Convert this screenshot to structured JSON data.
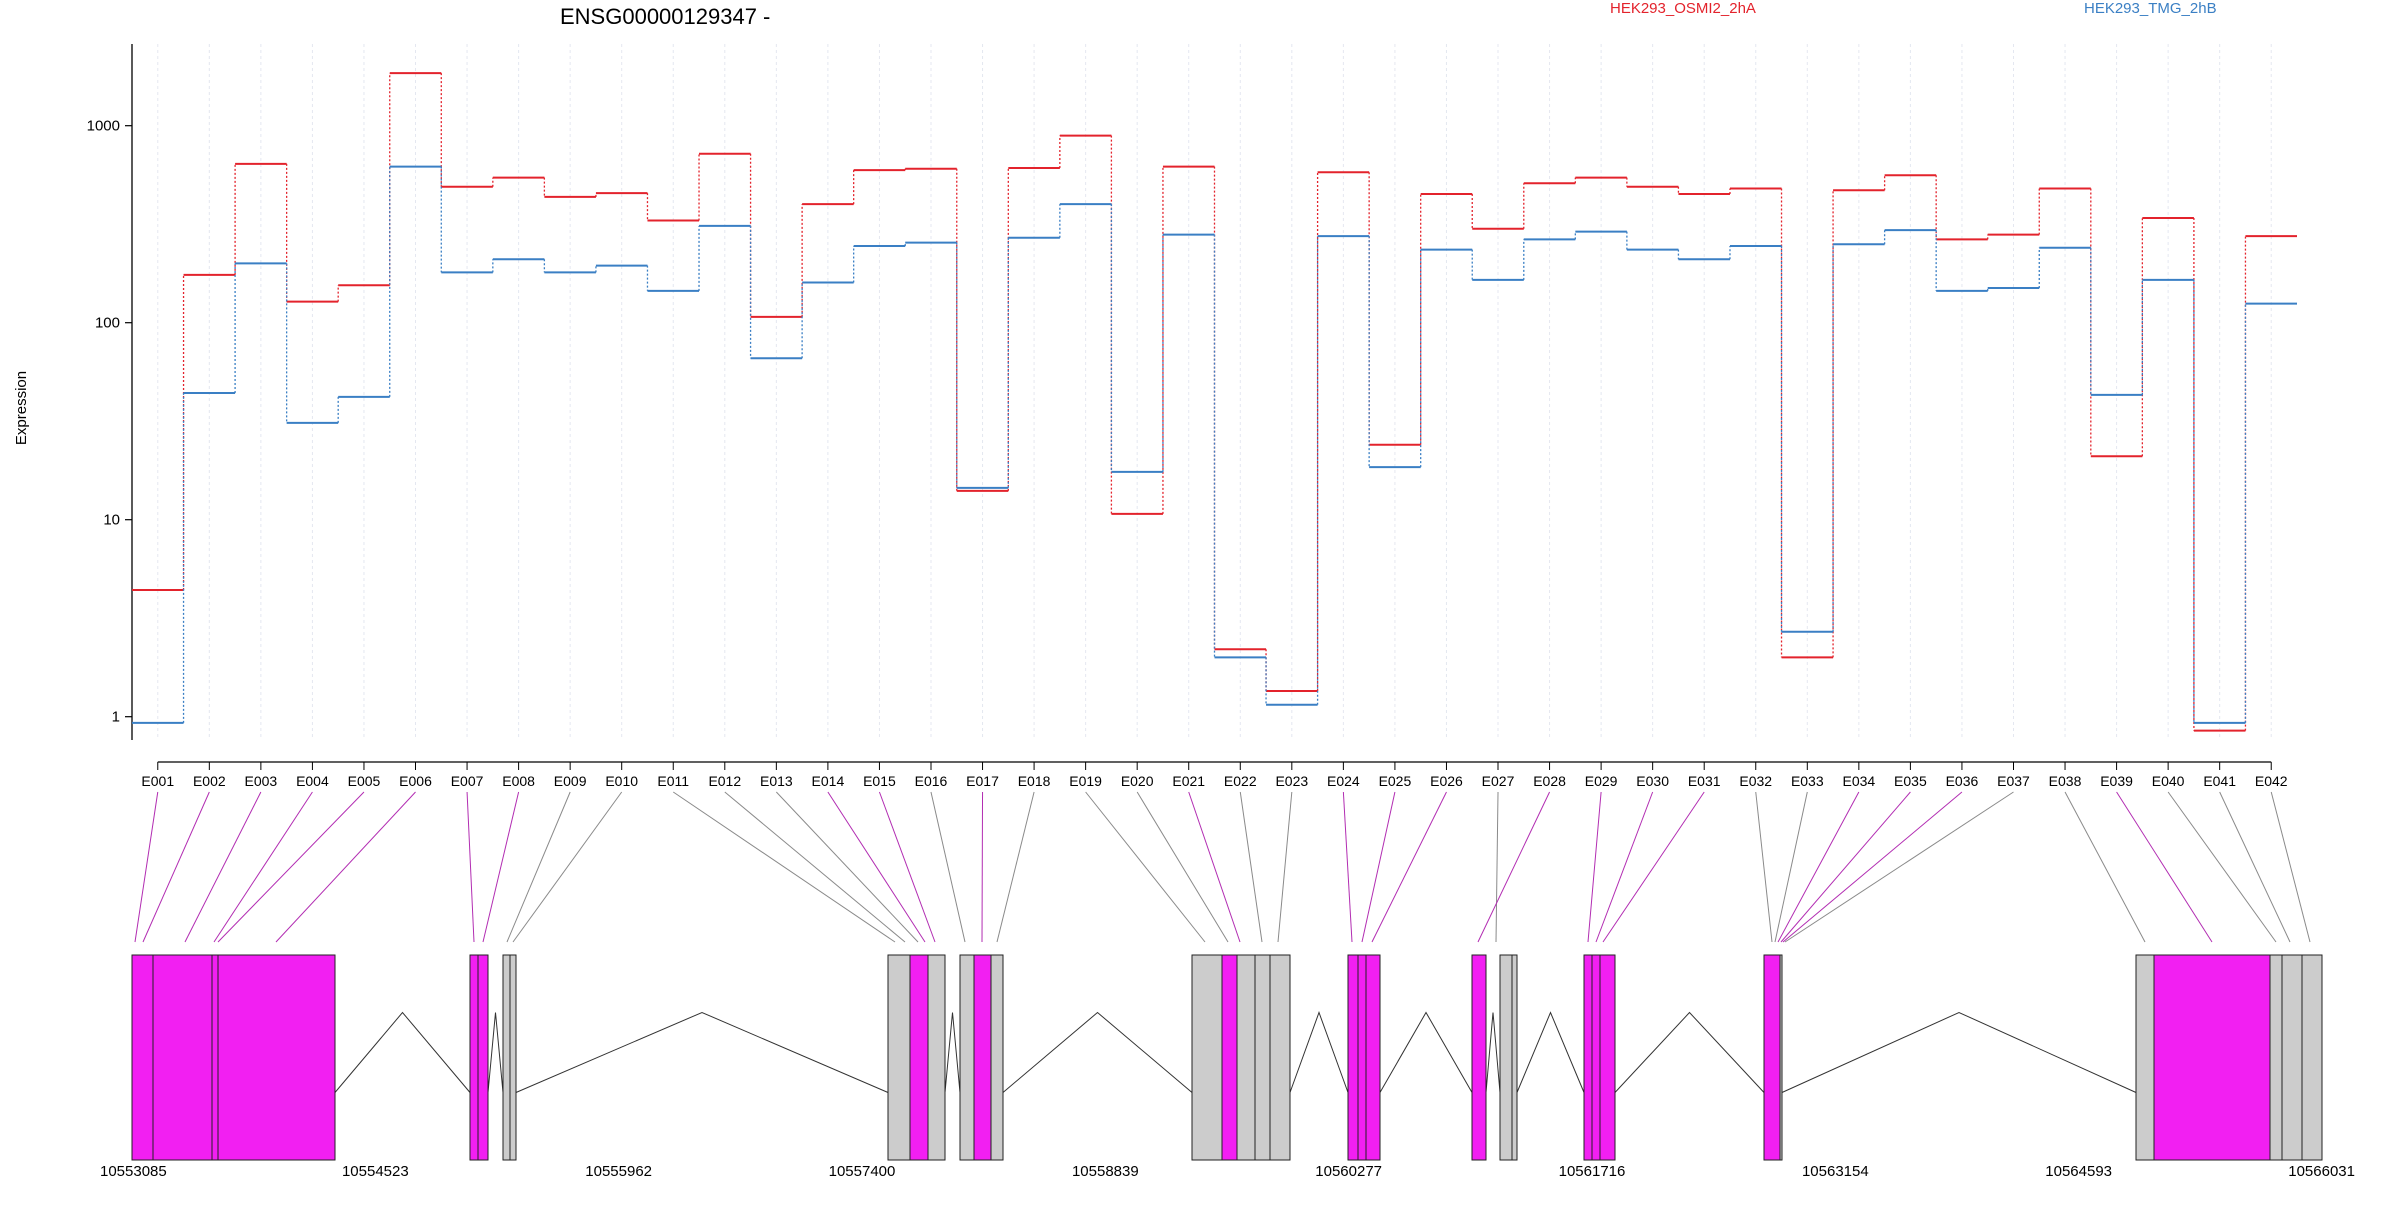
{
  "chart_data": {
    "type": "line",
    "title": "ENSG00000129347 -",
    "ylabel": "Expression",
    "y_scale": "log",
    "ylim": [
      0.5,
      2500
    ],
    "y_ticks": [
      1,
      10,
      100,
      1000
    ],
    "grid": "vertical dotted lines at each exon bin",
    "legend_placement": "top",
    "categories": [
      "E001",
      "E002",
      "E003",
      "E004",
      "E005",
      "E006",
      "E007",
      "E008",
      "E009",
      "E010",
      "E011",
      "E012",
      "E013",
      "E014",
      "E015",
      "E016",
      "E017",
      "E018",
      "E019",
      "E020",
      "E021",
      "E022",
      "E023",
      "E024",
      "E025",
      "E026",
      "E027",
      "E028",
      "E029",
      "E030",
      "E031",
      "E032",
      "E033",
      "E034",
      "E035",
      "E036",
      "E037",
      "E038",
      "E039",
      "E040",
      "E041",
      "E042"
    ],
    "series": [
      {
        "name": "HEK293_OSMI2_2hA",
        "color": "#e3232c",
        "values": [
          4.4,
          175,
          640,
          128,
          155,
          1850,
          490,
          545,
          435,
          455,
          330,
          720,
          107,
          400,
          595,
          605,
          14,
          610,
          890,
          10.7,
          620,
          2.2,
          1.35,
          580,
          24,
          450,
          300,
          510,
          545,
          490,
          450,
          480,
          2,
          470,
          560,
          265,
          280,
          480,
          21,
          340,
          0.85,
          275
        ]
      },
      {
        "name": "HEK293_TMG_2hB",
        "color": "#3a7fc4",
        "values": [
          0.93,
          44,
          200,
          31,
          42,
          620,
          180,
          210,
          180,
          195,
          145,
          310,
          66,
          160,
          245,
          255,
          14.5,
          270,
          400,
          17.5,
          280,
          2.0,
          1.15,
          275,
          18.5,
          235,
          165,
          265,
          290,
          235,
          210,
          245,
          2.7,
          250,
          295,
          145,
          150,
          240,
          43,
          165,
          0.93,
          125
        ]
      }
    ],
    "gene_model": {
      "coordinate_labels": [
        "10553085",
        "10554523",
        "10555962",
        "10557400",
        "10558839",
        "10560277",
        "10561716",
        "10563154",
        "10564593",
        "10566031"
      ],
      "exon_color_highlight": "#f21ff2",
      "exon_color_default": "#cccccc",
      "highlighted_exons": [
        "E001",
        "E002",
        "E003",
        "E004",
        "E005",
        "E006",
        "E007",
        "E008",
        "E014",
        "E015",
        "E017",
        "E021",
        "E024",
        "E025",
        "E026",
        "E028",
        "E029",
        "E030",
        "E031",
        "E034",
        "E035",
        "E036",
        "E039"
      ]
    }
  }
}
